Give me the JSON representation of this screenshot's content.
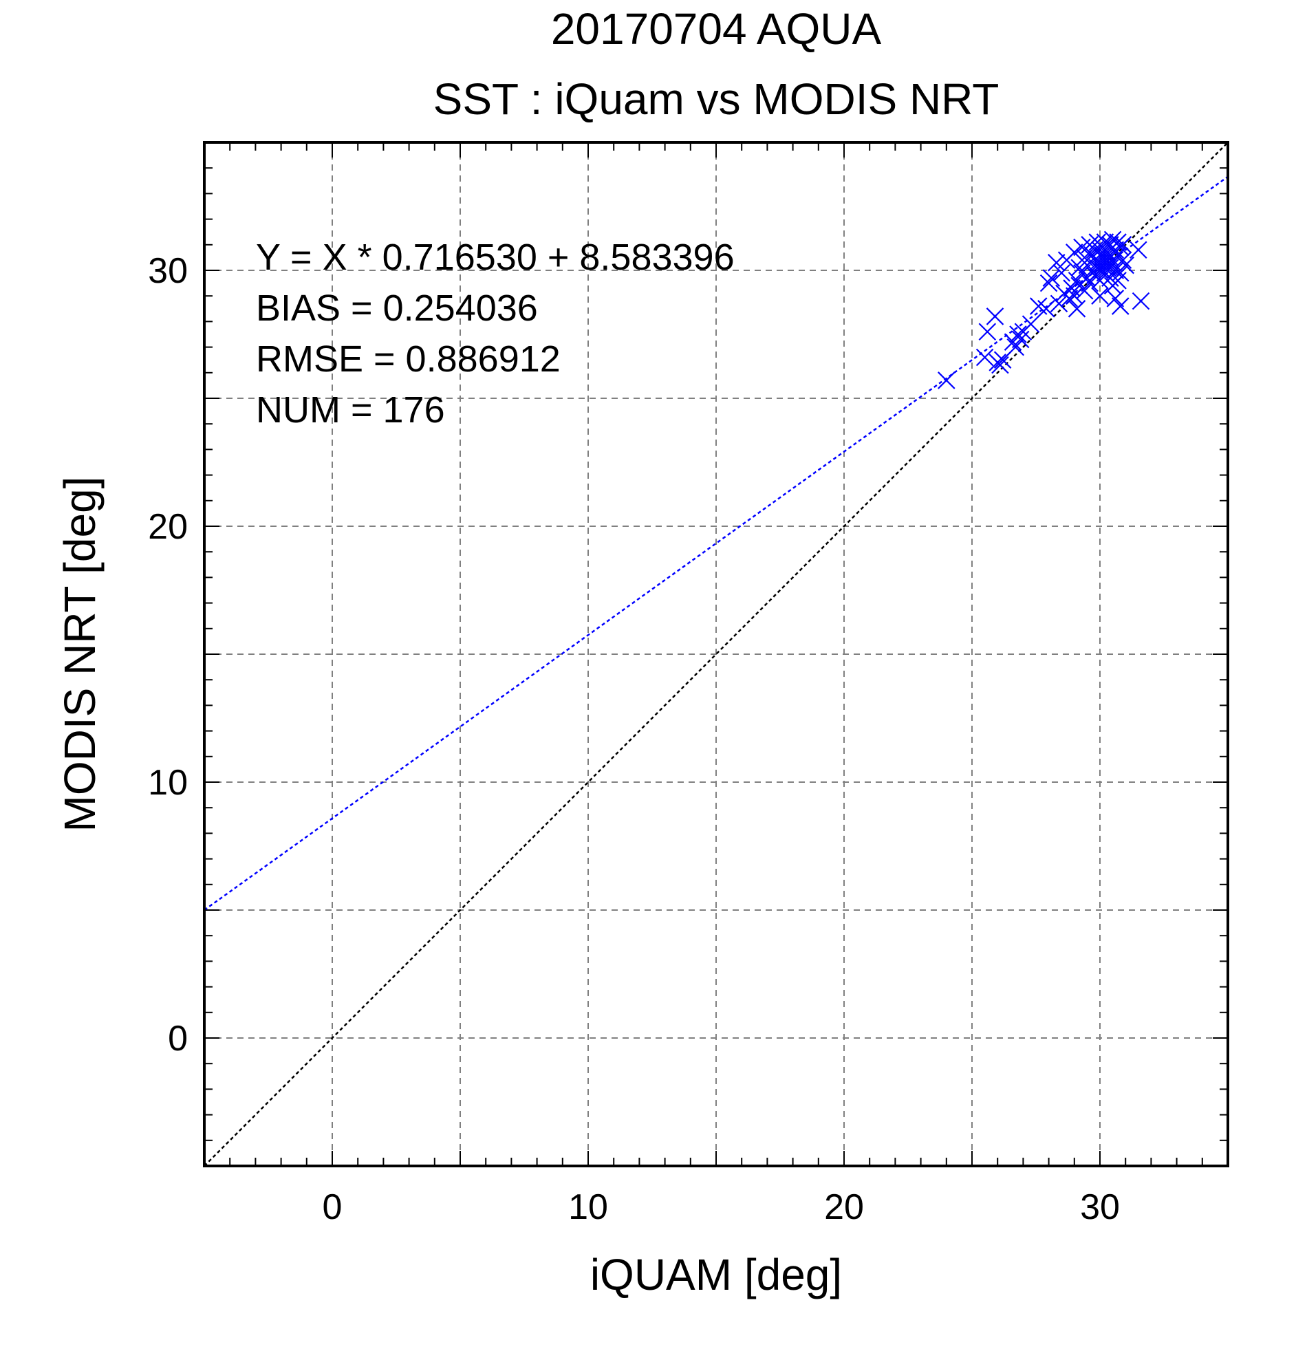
{
  "chart_data": {
    "type": "scatter",
    "title": "20170704 AQUA",
    "subtitle": "SST : iQuam vs MODIS NRT",
    "xlabel": "iQUAM [deg]",
    "ylabel": "MODIS NRT [deg]",
    "xlim": [
      -5,
      35
    ],
    "ylim": [
      -5,
      35
    ],
    "xticks": [
      0,
      10,
      20,
      30
    ],
    "yticks": [
      0,
      10,
      20,
      30
    ],
    "xticklabels": [
      "0",
      "10",
      "20",
      "30"
    ],
    "yticklabels": [
      "0",
      "10",
      "20",
      "30"
    ],
    "grid": true,
    "marker": "x",
    "colors": {
      "points": "#0000ff",
      "fit_line": "#0000ff",
      "identity_line": "#000000",
      "grid": "#808080"
    },
    "stats": {
      "equation": "Y = X * 0.716530 + 8.583396",
      "bias": "BIAS = 0.254036",
      "rmse": "RMSE = 0.886912",
      "num": "NUM = 176"
    },
    "fit_line": {
      "slope": 0.71653,
      "intercept": 8.583396
    },
    "identity_line": {
      "slope": 1,
      "intercept": 0
    },
    "series": [
      {
        "points": [
          [
            24.0,
            25.7
          ],
          [
            25.5,
            26.6
          ],
          [
            25.6,
            27.6
          ],
          [
            25.9,
            28.2
          ],
          [
            26.0,
            26.4
          ],
          [
            26.1,
            26.3
          ],
          [
            26.2,
            26.5
          ],
          [
            26.6,
            27.2
          ],
          [
            26.7,
            27.0
          ],
          [
            26.8,
            27.5
          ],
          [
            26.9,
            27.3
          ],
          [
            27.0,
            27.6
          ],
          [
            27.3,
            27.9
          ],
          [
            27.6,
            28.6
          ],
          [
            27.9,
            28.5
          ],
          [
            28.0,
            29.5
          ],
          [
            28.1,
            29.7
          ],
          [
            28.3,
            30.3
          ],
          [
            28.4,
            28.7
          ],
          [
            28.5,
            29.9
          ],
          [
            28.6,
            29.1
          ],
          [
            28.7,
            30.4
          ],
          [
            28.8,
            28.9
          ],
          [
            28.9,
            29.3
          ],
          [
            29.0,
            30.7
          ],
          [
            29.0,
            29.0
          ],
          [
            29.1,
            29.6
          ],
          [
            29.1,
            28.5
          ],
          [
            29.2,
            30.1
          ],
          [
            29.2,
            29.4
          ],
          [
            29.3,
            30.9
          ],
          [
            29.3,
            29.9
          ],
          [
            29.4,
            30.5
          ],
          [
            29.4,
            29.2
          ],
          [
            29.5,
            30.2
          ],
          [
            29.5,
            29.7
          ],
          [
            29.6,
            31.0
          ],
          [
            29.6,
            29.5
          ],
          [
            29.7,
            30.6
          ],
          [
            29.7,
            30.0
          ],
          [
            29.8,
            30.8
          ],
          [
            29.8,
            29.8
          ],
          [
            29.9,
            31.1
          ],
          [
            29.9,
            30.3
          ],
          [
            30.0,
            30.0
          ],
          [
            30.0,
            30.6
          ],
          [
            30.0,
            29.6
          ],
          [
            30.1,
            30.9
          ],
          [
            30.1,
            30.2
          ],
          [
            30.2,
            31.1
          ],
          [
            30.2,
            30.4
          ],
          [
            30.2,
            29.9
          ],
          [
            30.3,
            30.7
          ],
          [
            30.3,
            30.1
          ],
          [
            30.4,
            31.0
          ],
          [
            30.4,
            30.5
          ],
          [
            30.4,
            29.7
          ],
          [
            30.5,
            31.2
          ],
          [
            30.5,
            30.3
          ],
          [
            30.6,
            30.8
          ],
          [
            30.6,
            30.0
          ],
          [
            30.7,
            31.1
          ],
          [
            30.7,
            30.6
          ],
          [
            30.8,
            30.9
          ],
          [
            30.8,
            29.9
          ],
          [
            30.9,
            31.0
          ],
          [
            30.9,
            30.4
          ],
          [
            30.2,
            30.5
          ],
          [
            30.1,
            30.0
          ],
          [
            30.3,
            30.2
          ],
          [
            30.0,
            30.8
          ],
          [
            29.9,
            30.1
          ],
          [
            30.0,
            29.0
          ],
          [
            30.5,
            29.4
          ],
          [
            30.7,
            29.6
          ],
          [
            30.6,
            28.9
          ],
          [
            30.8,
            28.6
          ],
          [
            31.5,
            30.8
          ],
          [
            31.6,
            28.8
          ],
          [
            31.0,
            30.2
          ],
          [
            30.4,
            30.1
          ],
          [
            30.3,
            30.4
          ],
          [
            30.1,
            30.6
          ],
          [
            30.2,
            30.8
          ]
        ]
      }
    ]
  }
}
